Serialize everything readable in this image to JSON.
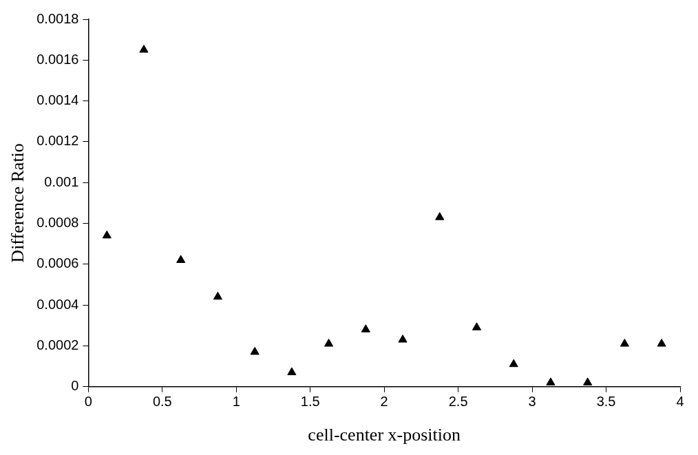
{
  "chart_data": {
    "type": "scatter",
    "xlabel": "cell-center x-position",
    "ylabel": "Difference Ratio",
    "x": [
      0.125,
      0.375,
      0.625,
      0.875,
      1.125,
      1.375,
      1.625,
      1.875,
      2.125,
      2.375,
      2.625,
      2.875,
      3.125,
      3.375,
      3.625,
      3.875
    ],
    "series": [
      {
        "color": "#000000",
        "values": [
          0.00074,
          0.00165,
          0.00062,
          0.00044,
          0.00017,
          7e-05,
          0.00021,
          0.00028,
          0.00023,
          0.00083,
          0.00029,
          0.00011,
          2e-05,
          2e-05,
          0.00021,
          0.00021
        ]
      }
    ],
    "xlim": [
      0,
      4
    ],
    "xticks": [
      0,
      0.5,
      1,
      1.5,
      2,
      2.5,
      3,
      3.5,
      4
    ],
    "ylim": [
      0,
      0.0018
    ],
    "yticks": [
      0,
      0.0002,
      0.0004,
      0.0006,
      0.0008,
      0.001,
      0.0012,
      0.0014,
      0.0016,
      0.0018
    ],
    "marker": "triangle",
    "grid": false,
    "legend": false
  }
}
